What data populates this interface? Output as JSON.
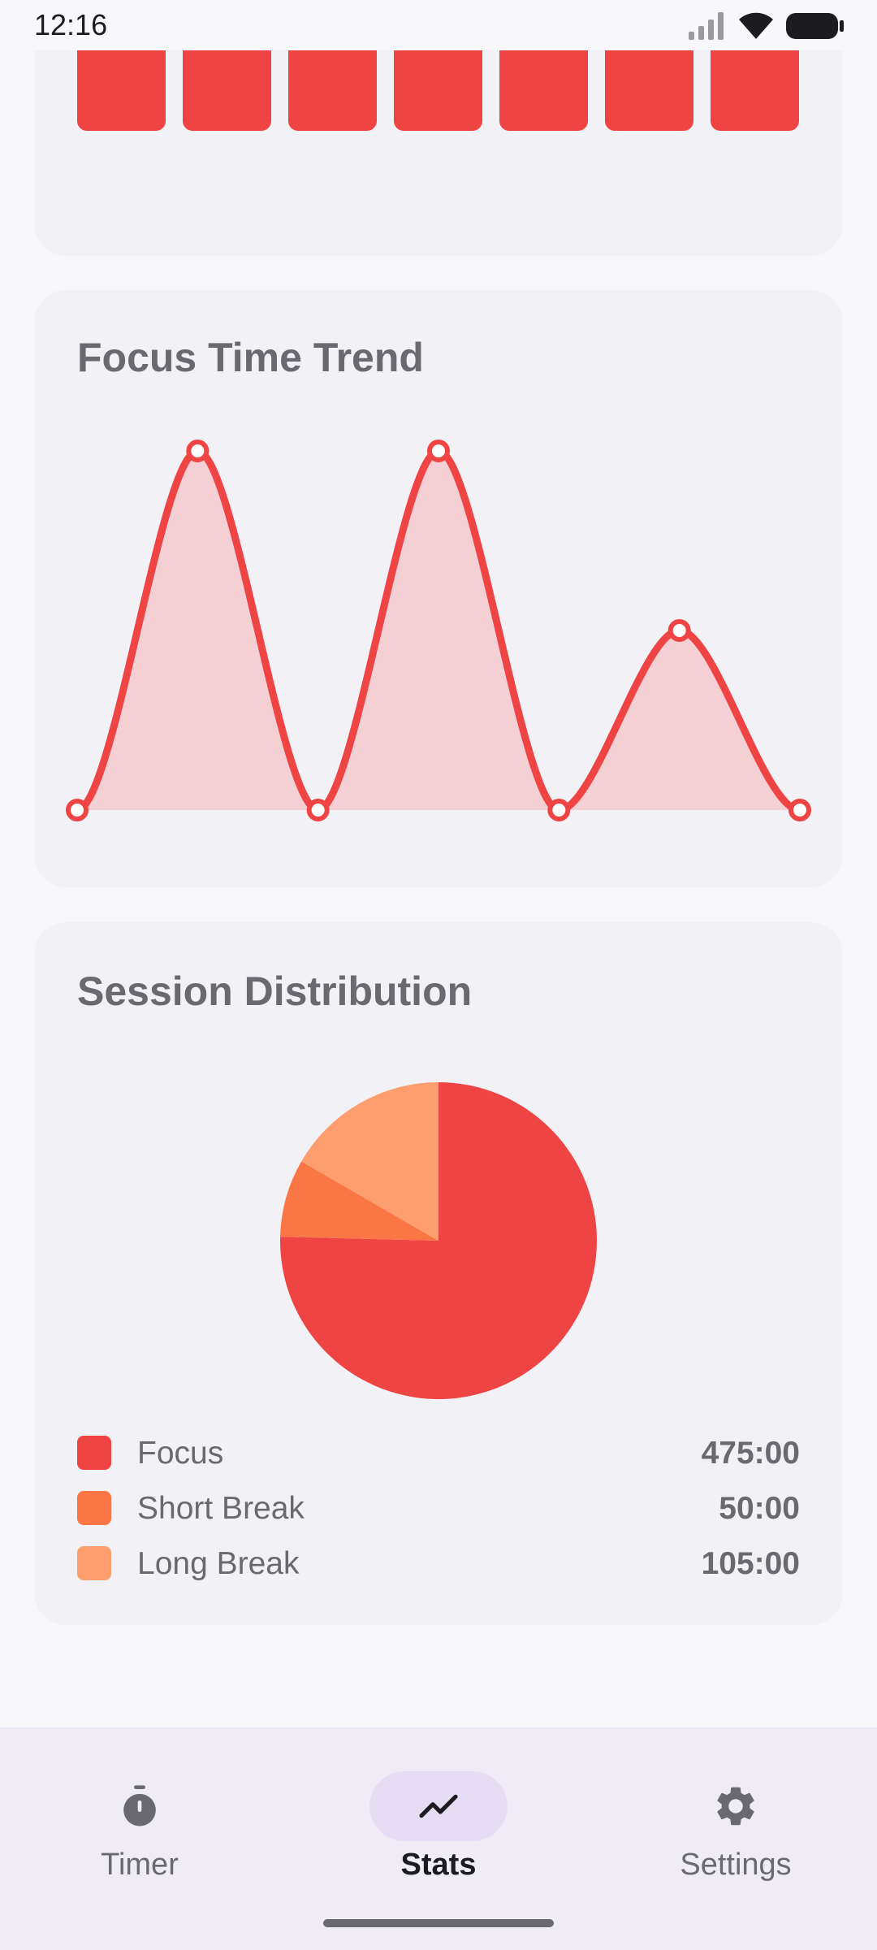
{
  "status_bar": {
    "time": "12:16"
  },
  "weekly_chart": {
    "bar_color": "#ef4444",
    "bar_count": 7
  },
  "trend": {
    "title": "Focus Time Trend",
    "line_color": "#ef4444",
    "fill_color": "#f4d0d5"
  },
  "distribution": {
    "title": "Session Distribution",
    "legend": [
      {
        "label": "Focus",
        "value": "475:00",
        "color": "#ef4444"
      },
      {
        "label": "Short Break",
        "value": "50:00",
        "color": "#fb7645"
      },
      {
        "label": "Long Break",
        "value": "105:00",
        "color": "#fe9e6f"
      }
    ]
  },
  "chart_data": [
    {
      "type": "line",
      "title": "Focus Time Trend",
      "x": [
        1,
        2,
        3,
        4,
        5,
        6,
        7
      ],
      "values": [
        0,
        2,
        0,
        2,
        0,
        1,
        0
      ],
      "ylim": [
        0,
        2
      ],
      "grid": false
    },
    {
      "type": "pie",
      "title": "Session Distribution",
      "categories": [
        "Focus",
        "Short Break",
        "Long Break"
      ],
      "values": [
        475,
        50,
        105
      ],
      "colors": [
        "#ef4444",
        "#fb7645",
        "#fe9e6f"
      ],
      "legend": "bottom"
    }
  ],
  "nav": {
    "items": [
      {
        "label": "Timer",
        "icon": "timer-icon",
        "active": false
      },
      {
        "label": "Stats",
        "icon": "trending-icon",
        "active": true
      },
      {
        "label": "Settings",
        "icon": "gear-icon",
        "active": false
      }
    ]
  }
}
